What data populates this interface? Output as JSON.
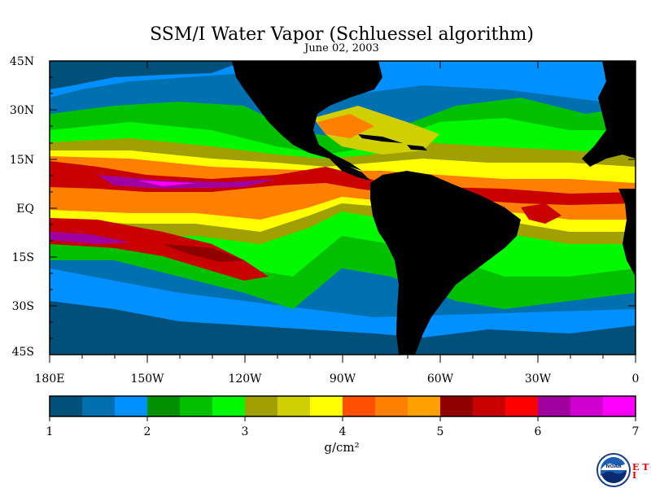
{
  "title": "SSM/I Water Vapor (Schluessel algorithm)",
  "date": "June 02, 2003",
  "lat_labels": [
    "45N",
    "30N",
    "15N",
    "EQ",
    "15S",
    "30S",
    "45S"
  ],
  "lon_labels": [
    "180E",
    "150W",
    "120W",
    "90W",
    "60W",
    "30W",
    "0"
  ],
  "colorbar": {
    "ticks": [
      "1",
      "2",
      "3",
      "4",
      "5",
      "6",
      "7"
    ],
    "units": "g/cm²",
    "colors": [
      "#00507a",
      "#0070b0",
      "#0090ff",
      "#009000",
      "#00c000",
      "#00f800",
      "#a0a000",
      "#d0d000",
      "#ffff00",
      "#ff5000",
      "#ff8000",
      "#ffa000",
      "#900000",
      "#c80000",
      "#ff0000",
      "#a000a0",
      "#d000d0",
      "#ff00ff"
    ]
  },
  "logo": {
    "text": "NOAA"
  },
  "badge": {
    "letters": "E T I"
  }
}
